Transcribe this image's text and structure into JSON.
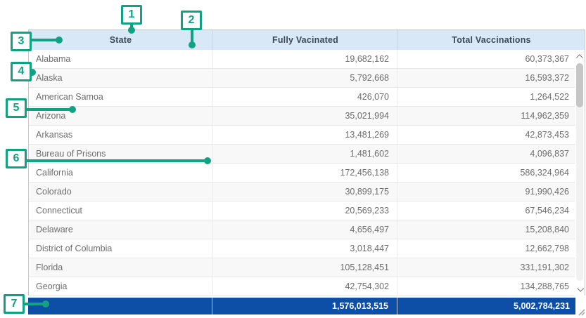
{
  "colors": {
    "callout_green": "#12a283",
    "header_bg": "#d9e8f6",
    "header_text": "#3c4a57",
    "body_text": "#6d6d6d",
    "row_alt_bg": "#f8f8f8",
    "grid_line": "#e7e7e7",
    "footer_bg": "#0d4ea6",
    "footer_text": "#ffffff"
  },
  "callouts": [
    {
      "label": "1"
    },
    {
      "label": "2"
    },
    {
      "label": "3"
    },
    {
      "label": "4"
    },
    {
      "label": "5"
    },
    {
      "label": "6"
    },
    {
      "label": "7"
    }
  ],
  "icons": {
    "scroll_up": "chevron-up",
    "scroll_down": "chevron-down",
    "resize": "diagonal-grip"
  },
  "table": {
    "columns": [
      {
        "label": "State"
      },
      {
        "label": "Fully Vacinated"
      },
      {
        "label": "Total Vaccinations"
      }
    ],
    "rows": [
      {
        "state": "Alabama",
        "fully_vaccinated": "19,682,162",
        "total_vaccinations": "60,373,367"
      },
      {
        "state": "Alaska",
        "fully_vaccinated": "5,792,668",
        "total_vaccinations": "16,593,372"
      },
      {
        "state": "American Samoa",
        "fully_vaccinated": "426,070",
        "total_vaccinations": "1,264,522"
      },
      {
        "state": "Arizona",
        "fully_vaccinated": "35,021,994",
        "total_vaccinations": "114,962,359"
      },
      {
        "state": "Arkansas",
        "fully_vaccinated": "13,481,269",
        "total_vaccinations": "42,873,453"
      },
      {
        "state": "Bureau of Prisons",
        "fully_vaccinated": "1,481,602",
        "total_vaccinations": "4,096,837"
      },
      {
        "state": "California",
        "fully_vaccinated": "172,456,138",
        "total_vaccinations": "586,324,964"
      },
      {
        "state": "Colorado",
        "fully_vaccinated": "30,899,175",
        "total_vaccinations": "91,990,426"
      },
      {
        "state": "Connecticut",
        "fully_vaccinated": "20,569,233",
        "total_vaccinations": "67,546,234"
      },
      {
        "state": "Delaware",
        "fully_vaccinated": "4,656,497",
        "total_vaccinations": "15,208,840"
      },
      {
        "state": "District of Columbia",
        "fully_vaccinated": "3,018,447",
        "total_vaccinations": "12,662,798"
      },
      {
        "state": "Florida",
        "fully_vaccinated": "105,128,451",
        "total_vaccinations": "331,191,302"
      },
      {
        "state": "Georgia",
        "fully_vaccinated": "42,754,302",
        "total_vaccinations": "134,288,765"
      }
    ],
    "footer": {
      "state": "",
      "fully_vaccinated": "1,576,013,515",
      "total_vaccinations": "5,002,784,231"
    }
  }
}
